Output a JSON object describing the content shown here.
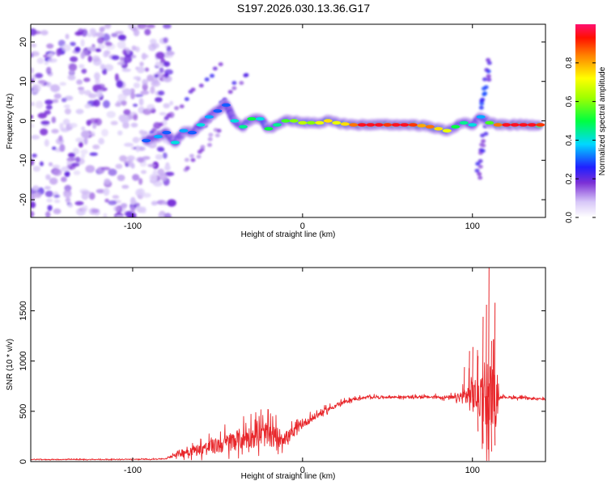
{
  "title": "S197.2026.030.13.36.G17",
  "colors": {
    "line": "#e8262a",
    "blob": "#7b2fd6",
    "frame": "#000000"
  },
  "chart_data": [
    {
      "type": "heatmap",
      "name": "spectrogram",
      "xlabel": "Height of straight line (km)",
      "ylabel": "Frequency (Hz)",
      "xlim": [
        -160,
        143
      ],
      "ylim": [
        -24.5,
        24.5
      ],
      "x_ticks": [
        -100,
        0,
        100
      ],
      "y_ticks": [
        -20,
        -10,
        0,
        10,
        20
      ],
      "colorbar": {
        "label": "Normalized spectral amplitude",
        "range": [
          0,
          1
        ],
        "ticks": [
          0.0,
          0.2,
          0.4,
          0.6,
          0.8
        ]
      },
      "signal_ridge": [
        {
          "x": -92,
          "f": -5.0,
          "a": 0.3
        },
        {
          "x": -85,
          "f": -4.0,
          "a": 0.35
        },
        {
          "x": -80,
          "f": -3.0,
          "a": 0.3
        },
        {
          "x": -75,
          "f": -5.5,
          "a": 0.4
        },
        {
          "x": -70,
          "f": -2.5,
          "a": 0.35
        },
        {
          "x": -65,
          "f": -3.0,
          "a": 0.3
        },
        {
          "x": -60,
          "f": -1.0,
          "a": 0.4
        },
        {
          "x": -55,
          "f": 1.0,
          "a": 0.35
        },
        {
          "x": -50,
          "f": 2.5,
          "a": 0.3
        },
        {
          "x": -45,
          "f": 4.0,
          "a": 0.3
        },
        {
          "x": -40,
          "f": 0.0,
          "a": 0.4
        },
        {
          "x": -35,
          "f": -1.5,
          "a": 0.45
        },
        {
          "x": -30,
          "f": 0.5,
          "a": 0.5
        },
        {
          "x": -25,
          "f": 0.5,
          "a": 0.4
        },
        {
          "x": -20,
          "f": -2.0,
          "a": 0.5
        },
        {
          "x": -15,
          "f": -1.0,
          "a": 0.45
        },
        {
          "x": -10,
          "f": 0.0,
          "a": 0.55
        },
        {
          "x": -5,
          "f": 0.0,
          "a": 0.6
        },
        {
          "x": 0,
          "f": -0.5,
          "a": 0.65
        },
        {
          "x": 5,
          "f": -0.5,
          "a": 0.6
        },
        {
          "x": 10,
          "f": -0.5,
          "a": 0.7
        },
        {
          "x": 15,
          "f": 0.0,
          "a": 0.75
        },
        {
          "x": 20,
          "f": -0.5,
          "a": 0.7
        },
        {
          "x": 25,
          "f": -0.8,
          "a": 0.75
        },
        {
          "x": 30,
          "f": -1.0,
          "a": 0.85
        },
        {
          "x": 35,
          "f": -1.0,
          "a": 0.95
        },
        {
          "x": 40,
          "f": -1.0,
          "a": 0.95
        },
        {
          "x": 45,
          "f": -1.0,
          "a": 0.95
        },
        {
          "x": 50,
          "f": -1.0,
          "a": 0.9
        },
        {
          "x": 55,
          "f": -1.0,
          "a": 0.95
        },
        {
          "x": 60,
          "f": -1.0,
          "a": 0.95
        },
        {
          "x": 65,
          "f": -1.0,
          "a": 0.9
        },
        {
          "x": 70,
          "f": -1.2,
          "a": 0.8
        },
        {
          "x": 75,
          "f": -1.5,
          "a": 0.85
        },
        {
          "x": 80,
          "f": -2.0,
          "a": 0.75
        },
        {
          "x": 85,
          "f": -2.5,
          "a": 0.7
        },
        {
          "x": 90,
          "f": -1.5,
          "a": 0.5
        },
        {
          "x": 95,
          "f": -0.5,
          "a": 0.45
        },
        {
          "x": 100,
          "f": -1.0,
          "a": 0.4
        },
        {
          "x": 105,
          "f": 1.0,
          "a": 0.35
        },
        {
          "x": 110,
          "f": -0.5,
          "a": 0.55
        },
        {
          "x": 115,
          "f": -1.0,
          "a": 0.85
        },
        {
          "x": 120,
          "f": -1.0,
          "a": 0.95
        },
        {
          "x": 125,
          "f": -1.0,
          "a": 0.95
        },
        {
          "x": 130,
          "f": -1.0,
          "a": 0.95
        },
        {
          "x": 135,
          "f": -1.0,
          "a": 0.95
        },
        {
          "x": 140,
          "f": -1.0,
          "a": 0.9
        }
      ],
      "noise_region_x": [
        -160,
        -85
      ],
      "side_streaks": [
        {
          "x0": -90,
          "f0": -3,
          "x1": -48,
          "f1": 14,
          "a": 0.2
        },
        {
          "x0": -60,
          "f0": -2,
          "x1": -33,
          "f1": 12,
          "a": 0.2
        },
        {
          "x0": -70,
          "f0": -12,
          "x1": -48,
          "f1": -2,
          "a": 0.15
        },
        {
          "x0": 103,
          "f0": -14,
          "x1": 107,
          "f1": -2,
          "a": 0.2
        },
        {
          "x0": 106,
          "f0": 3,
          "x1": 110,
          "f1": 15,
          "a": 0.25
        }
      ]
    },
    {
      "type": "line",
      "name": "snr",
      "xlabel": "Height of straight line (km)",
      "ylabel": "SNR (10 * v/v)",
      "xlim": [
        -160,
        143
      ],
      "ylim": [
        0,
        1930
      ],
      "x_ticks": [
        -100,
        0,
        100
      ],
      "y_ticks": [
        0,
        500,
        1000,
        1500
      ],
      "series": [
        {
          "name": "SNR",
          "x": [
            -160,
            -140,
            -120,
            -100,
            -90,
            -80,
            -75,
            -70,
            -60,
            -50,
            -40,
            -30,
            -25,
            -20,
            -15,
            -10,
            -5,
            0,
            10,
            20,
            30,
            40,
            50,
            60,
            70,
            80,
            90,
            95,
            98,
            100,
            102,
            104,
            106,
            108,
            110,
            112,
            114,
            116,
            120,
            130,
            140,
            143
          ],
          "base": [
            20,
            20,
            20,
            22,
            22,
            28,
            70,
            90,
            120,
            150,
            200,
            240,
            260,
            250,
            230,
            230,
            280,
            370,
            470,
            560,
            620,
            640,
            640,
            640,
            640,
            640,
            630,
            640,
            650,
            640,
            640,
            630,
            640,
            640,
            640,
            640,
            630,
            640,
            640,
            630,
            620,
            620
          ],
          "noise": [
            8,
            8,
            8,
            8,
            8,
            10,
            50,
            80,
            110,
            160,
            200,
            230,
            250,
            220,
            200,
            130,
            120,
            80,
            60,
            40,
            30,
            25,
            25,
            25,
            25,
            30,
            50,
            150,
            300,
            400,
            350,
            450,
            600,
            900,
            700,
            600,
            300,
            30,
            25,
            25,
            20,
            20
          ],
          "peaks": [
            {
              "x": 95,
              "y": 940
            },
            {
              "x": 98,
              "y": 1100
            },
            {
              "x": 100,
              "y": 1140
            },
            {
              "x": 103,
              "y": 1050
            },
            {
              "x": 106,
              "y": 1440
            },
            {
              "x": 108,
              "y": 1560
            },
            {
              "x": 109.5,
              "y": 1930
            },
            {
              "x": 111,
              "y": 1200
            },
            {
              "x": 113,
              "y": 1580
            }
          ],
          "dips": [
            {
              "x": 103,
              "y": 300
            },
            {
              "x": 106,
              "y": 180
            },
            {
              "x": 109,
              "y": 120
            },
            {
              "x": 111,
              "y": 100
            },
            {
              "x": 113,
              "y": 160
            }
          ]
        }
      ]
    }
  ]
}
